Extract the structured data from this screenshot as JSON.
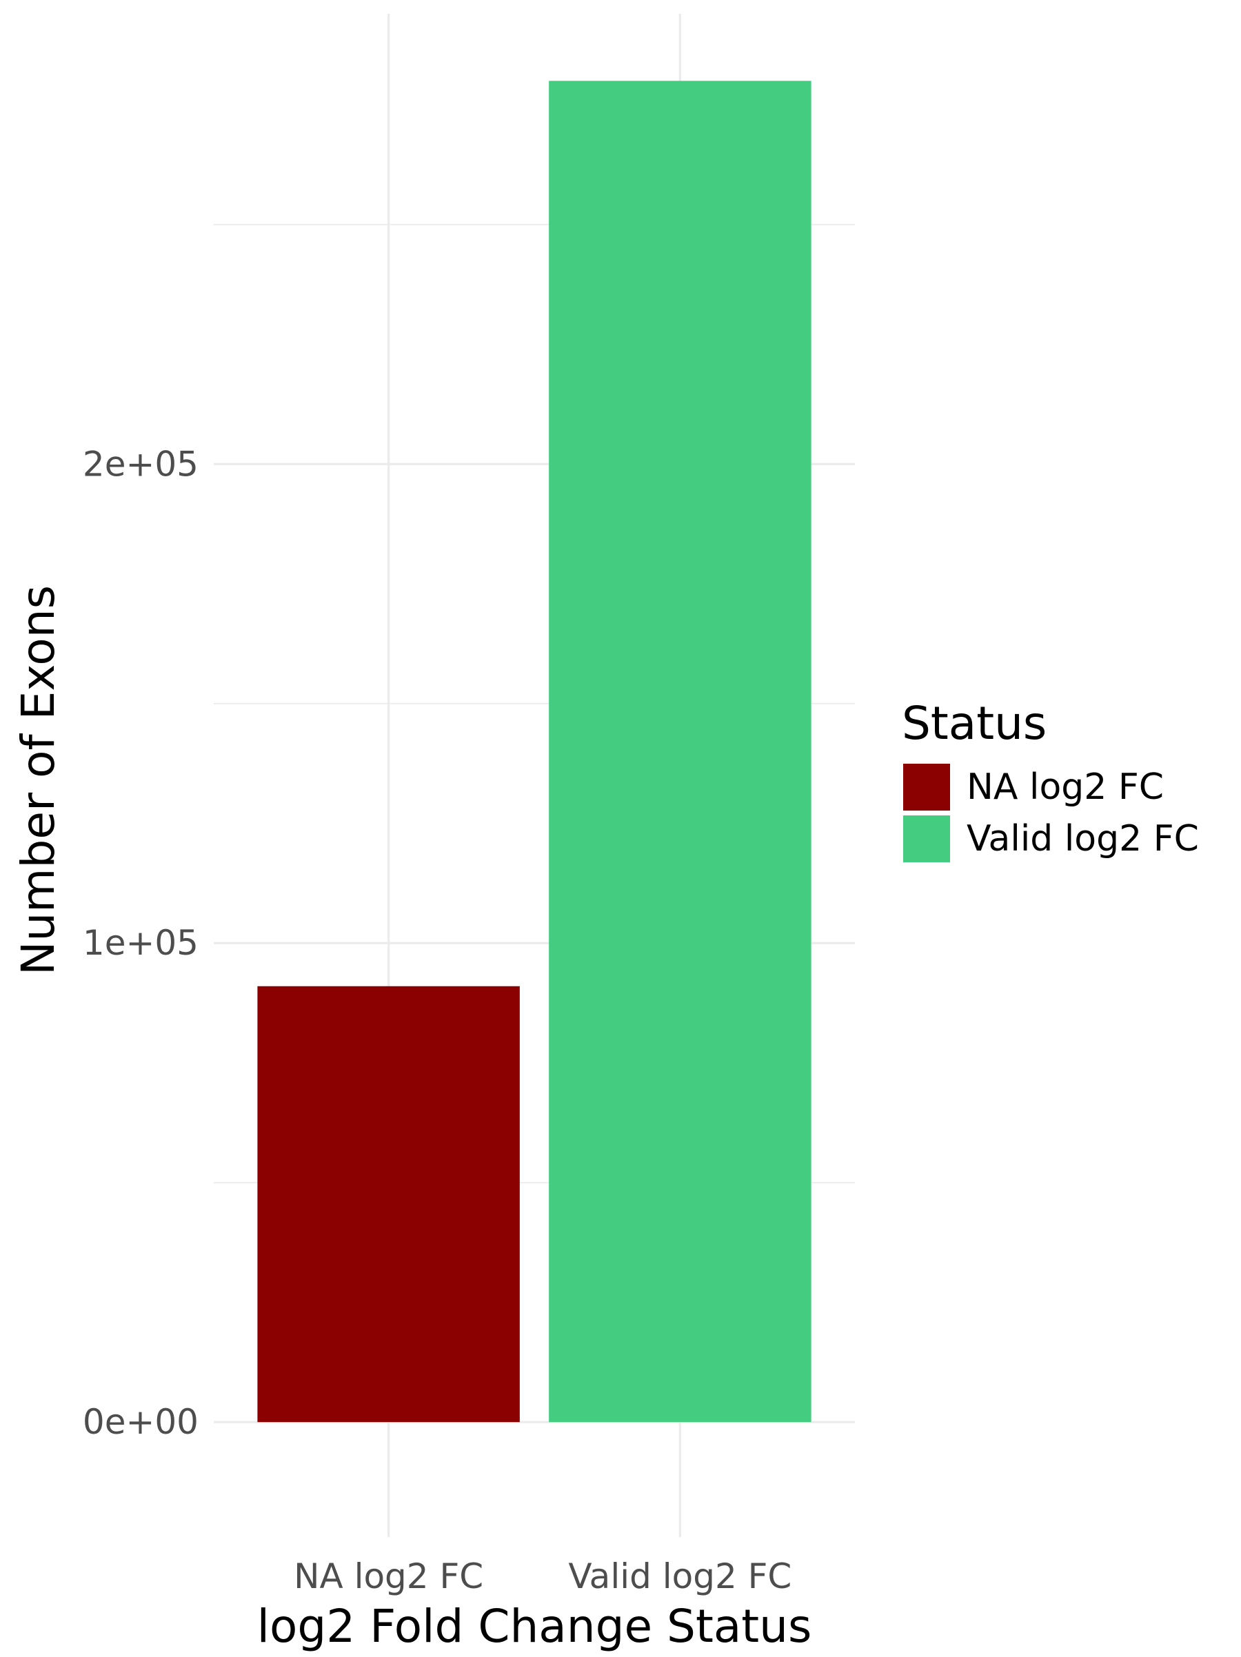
{
  "chart_data": {
    "type": "bar",
    "title": "",
    "xlabel": "log2 Fold Change Status",
    "ylabel": "Number of Exons",
    "categories": [
      "NA log2 FC",
      "Valid log2 FC"
    ],
    "values": [
      91000,
      280000
    ],
    "colors": [
      "#8B0000",
      "#44CD80"
    ],
    "ylim": [
      -24000,
      294000
    ],
    "yticks": [
      0,
      100000,
      200000
    ],
    "ytick_labels": [
      "0e+00",
      "1e+05",
      "2e+05"
    ],
    "grid": true,
    "legend": {
      "title": "Status",
      "placement": "right",
      "entries": [
        {
          "label": "NA log2 FC",
          "color": "#8B0000"
        },
        {
          "label": "Valid log2 FC",
          "color": "#44CD80"
        }
      ]
    }
  }
}
